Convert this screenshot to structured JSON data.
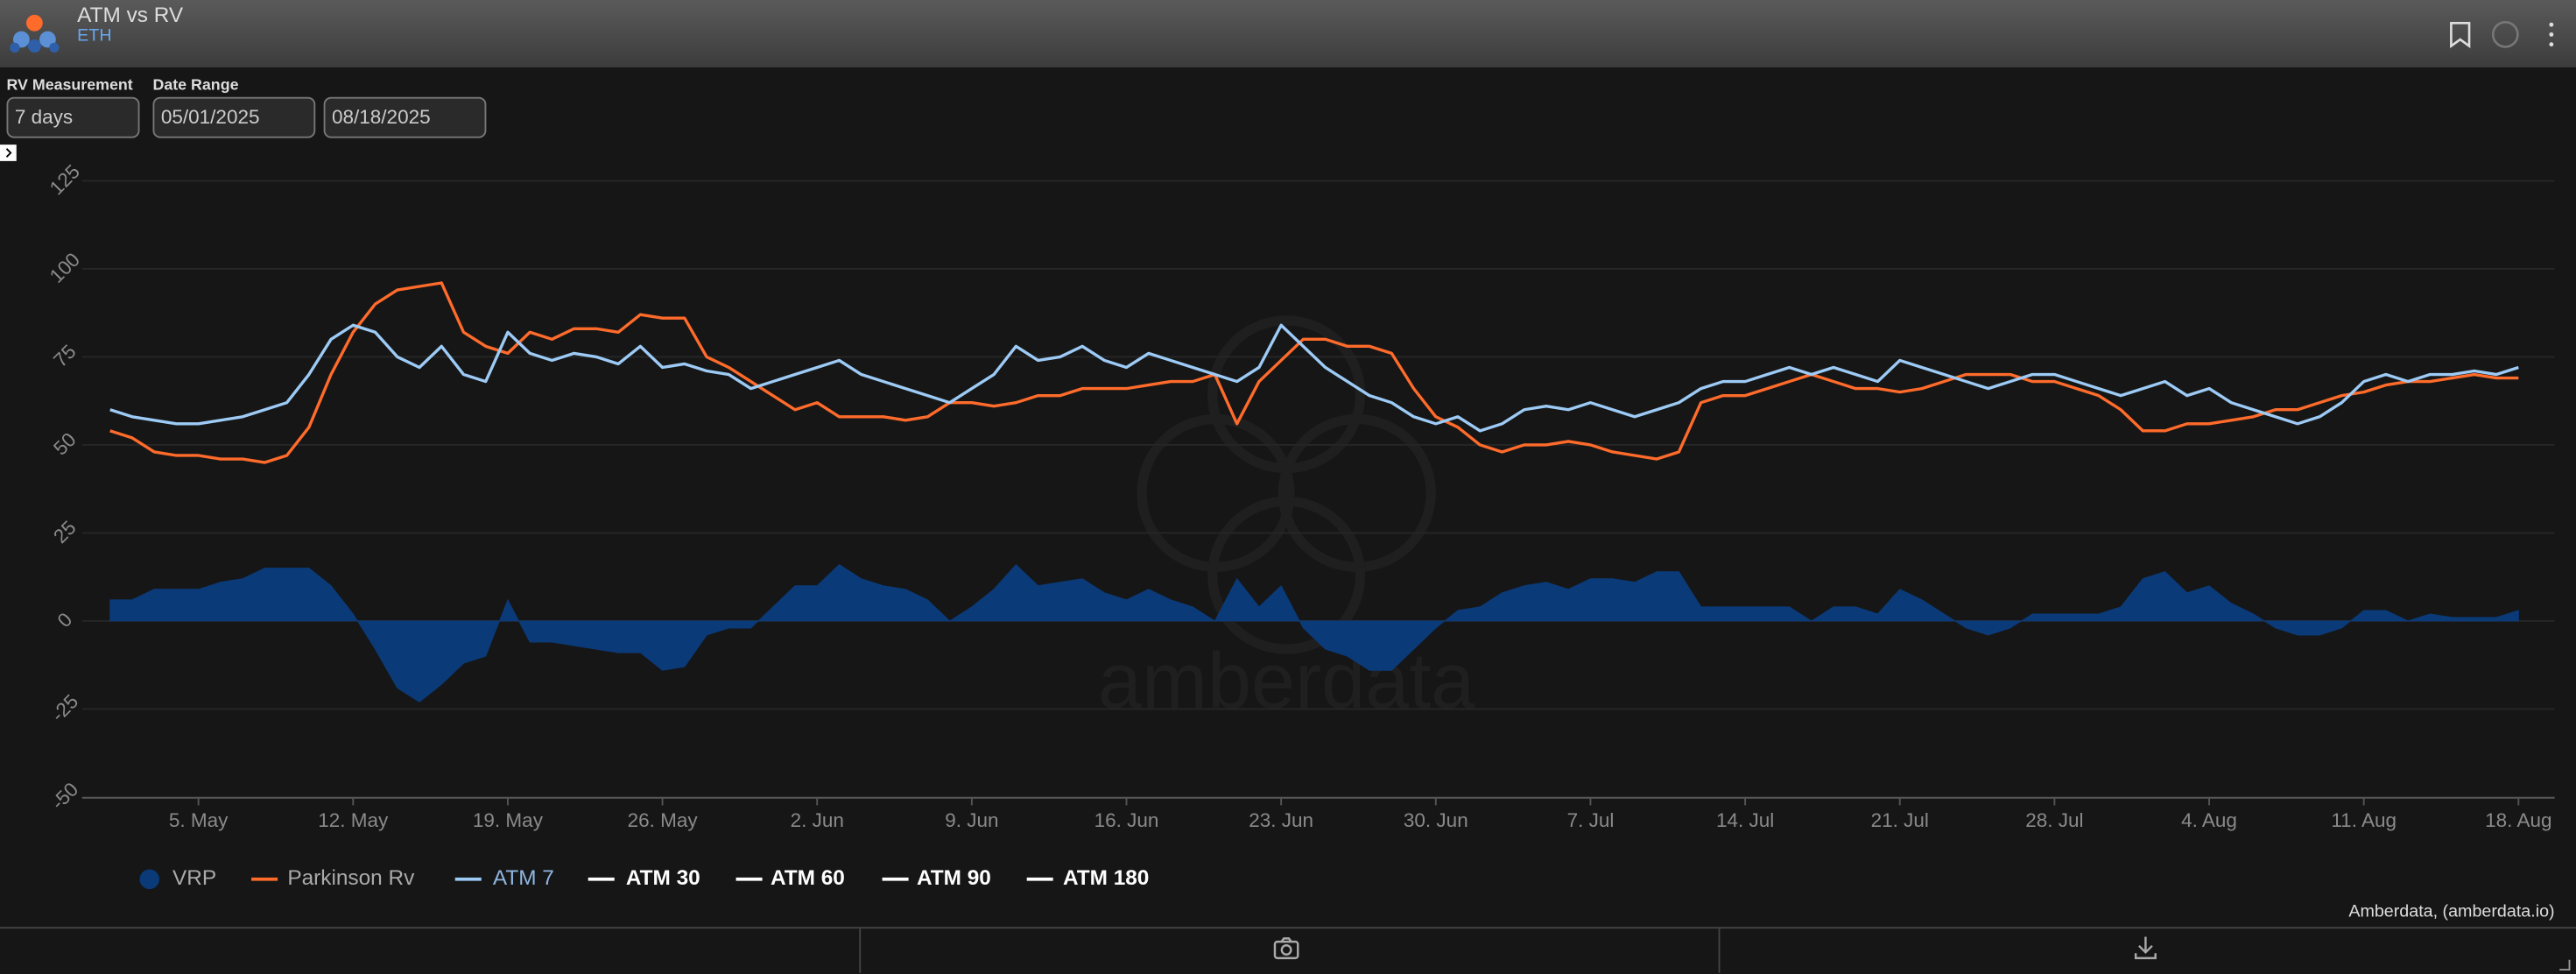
{
  "header": {
    "title": "ATM vs RV",
    "subtitle": "ETH"
  },
  "controls": {
    "rv_label": "RV Measurement",
    "rv_value": "7 days",
    "range_label": "Date Range",
    "start": "05/01/2025",
    "end": "08/18/2025"
  },
  "watermark": "amberdata",
  "credit": "Amberdata, (amberdata.io)",
  "chart_data": {
    "type": "line",
    "xstart": "2025-05-01",
    "xlim": [
      "2025-05-01",
      "2025-08-18"
    ],
    "xticks": [
      {
        "value": "2025-05-05",
        "label": "5. May"
      },
      {
        "value": "2025-05-12",
        "label": "12. May"
      },
      {
        "value": "2025-05-19",
        "label": "19. May"
      },
      {
        "value": "2025-05-26",
        "label": "26. May"
      },
      {
        "value": "2025-06-02",
        "label": "2. Jun"
      },
      {
        "value": "2025-06-09",
        "label": "9. Jun"
      },
      {
        "value": "2025-06-16",
        "label": "16. Jun"
      },
      {
        "value": "2025-06-23",
        "label": "23. Jun"
      },
      {
        "value": "2025-06-30",
        "label": "30. Jun"
      },
      {
        "value": "2025-07-07",
        "label": "7. Jul"
      },
      {
        "value": "2025-07-14",
        "label": "14. Jul"
      },
      {
        "value": "2025-07-21",
        "label": "21. Jul"
      },
      {
        "value": "2025-07-28",
        "label": "28. Jul"
      },
      {
        "value": "2025-08-04",
        "label": "4. Aug"
      },
      {
        "value": "2025-08-11",
        "label": "11. Aug"
      },
      {
        "value": "2025-08-18",
        "label": "18. Aug"
      }
    ],
    "ylim": [
      -50,
      125
    ],
    "yticks": [
      -50,
      -25,
      0,
      25,
      50,
      75,
      100,
      125
    ],
    "grid": true,
    "series": [
      {
        "name": "VRP",
        "color": "#0b3a78",
        "kind": "area",
        "values": [
          6,
          6,
          9,
          9,
          9,
          11,
          12,
          15,
          15,
          15,
          10,
          2,
          -8,
          -19,
          -23,
          -18,
          -12,
          -10,
          6,
          -6,
          -6,
          -7,
          -8,
          -9,
          -9,
          -14,
          -13,
          -4,
          -2,
          -2,
          4,
          10,
          10,
          16,
          12,
          10,
          9,
          6,
          0,
          4,
          9,
          16,
          10,
          11,
          12,
          8,
          6,
          9,
          6,
          4,
          0,
          12,
          4,
          10,
          -2,
          -8,
          -10,
          -14,
          -14,
          -8,
          -2,
          3,
          4,
          8,
          10,
          11,
          9,
          12,
          12,
          11,
          14,
          14,
          4,
          4,
          4,
          4,
          4,
          0,
          4,
          4,
          2,
          9,
          6,
          2,
          -2,
          -4,
          -2,
          2,
          2,
          2,
          2,
          4,
          12,
          14,
          8,
          10,
          5,
          2,
          -2,
          -4,
          -4,
          -2,
          3,
          3,
          0,
          2,
          1,
          1,
          1,
          3
        ]
      },
      {
        "name": "Parkinson Rv",
        "color": "#ff6b2b",
        "kind": "line",
        "values": [
          54,
          52,
          48,
          47,
          47,
          46,
          46,
          45,
          47,
          55,
          70,
          82,
          90,
          94,
          95,
          96,
          82,
          78,
          76,
          82,
          80,
          83,
          83,
          82,
          87,
          86,
          86,
          75,
          72,
          68,
          64,
          60,
          62,
          58,
          58,
          58,
          57,
          58,
          62,
          62,
          61,
          62,
          64,
          64,
          66,
          66,
          66,
          67,
          68,
          68,
          70,
          56,
          68,
          74,
          80,
          80,
          78,
          78,
          76,
          66,
          58,
          55,
          50,
          48,
          50,
          50,
          51,
          50,
          48,
          47,
          46,
          48,
          62,
          64,
          64,
          66,
          68,
          70,
          68,
          66,
          66,
          65,
          66,
          68,
          70,
          70,
          70,
          68,
          68,
          66,
          64,
          60,
          54,
          54,
          56,
          56,
          57,
          58,
          60,
          60,
          62,
          64,
          65,
          67,
          68,
          68,
          69,
          70,
          69,
          69
        ]
      },
      {
        "name": "ATM 7",
        "color": "#9dcbf6",
        "kind": "line",
        "values": [
          60,
          58,
          57,
          56,
          56,
          57,
          58,
          60,
          62,
          70,
          80,
          84,
          82,
          75,
          72,
          78,
          70,
          68,
          82,
          76,
          74,
          76,
          75,
          73,
          78,
          72,
          73,
          71,
          70,
          66,
          68,
          70,
          72,
          74,
          70,
          68,
          66,
          64,
          62,
          66,
          70,
          78,
          74,
          75,
          78,
          74,
          72,
          76,
          74,
          72,
          70,
          68,
          72,
          84,
          78,
          72,
          68,
          64,
          62,
          58,
          56,
          58,
          54,
          56,
          60,
          61,
          60,
          62,
          60,
          58,
          60,
          62,
          66,
          68,
          68,
          70,
          72,
          70,
          72,
          70,
          68,
          74,
          72,
          70,
          68,
          66,
          68,
          70,
          70,
          68,
          66,
          64,
          66,
          68,
          64,
          66,
          62,
          60,
          58,
          56,
          58,
          62,
          68,
          70,
          68,
          70,
          70,
          71,
          70,
          72
        ]
      }
    ],
    "hidden_series": [
      {
        "name": "ATM 30",
        "color": "#ffffff"
      },
      {
        "name": "ATM 60",
        "color": "#ffffff"
      },
      {
        "name": "ATM 90",
        "color": "#ffffff"
      },
      {
        "name": "ATM 180",
        "color": "#ffffff"
      }
    ]
  }
}
